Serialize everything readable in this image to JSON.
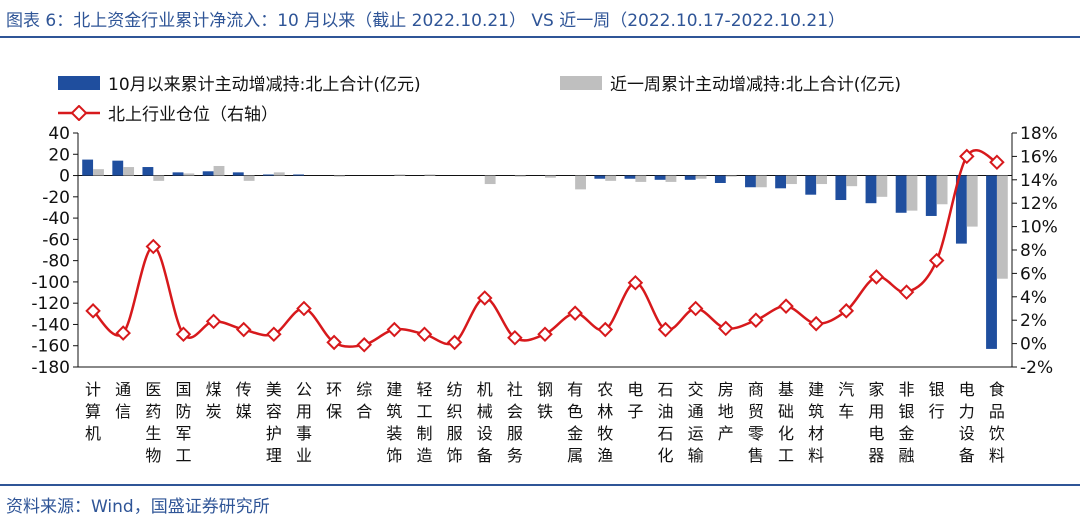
{
  "title": "图表 6：北上资金行业累计净流入：10 月以来（截止 2022.10.21） VS 近一周（2022.10.17-2022.10.21）",
  "source": "资料来源：Wind，国盛证券研究所",
  "colors": {
    "s1": "#1f4e9e",
    "s2": "#bfbfbf",
    "line": "#d7191c",
    "title": "#2f5597"
  },
  "chart_data": {
    "type": "bar",
    "categories": [
      "计算机",
      "通信",
      "医药生物",
      "国防军工",
      "煤炭",
      "传媒",
      "美容护理",
      "公用事业",
      "环保",
      "综合",
      "建筑装饰",
      "轻工制造",
      "纺织服饰",
      "机械设备",
      "社会服务",
      "钢铁",
      "有色金属",
      "农林牧渔",
      "电子",
      "石油石化",
      "交通运输",
      "房地产",
      "商贸零售",
      "基础化工",
      "建筑材料",
      "汽车",
      "家用电器",
      "非银金融",
      "银行",
      "电力设备",
      "食品饮料"
    ],
    "series": [
      {
        "name": "10月以来累计主动增减持:北上合计(亿元)",
        "axis": "left",
        "type": "bar",
        "values": [
          15,
          14,
          8,
          3,
          4,
          3,
          1,
          1,
          0,
          0,
          0,
          0,
          0,
          0,
          0,
          0,
          0,
          -3,
          -3,
          -4,
          -4,
          -7,
          -11,
          -12,
          -18,
          -23,
          -26,
          -35,
          -38,
          -64,
          -163
        ]
      },
      {
        "name": "近一周累计主动增减持:北上合计(亿元)",
        "axis": "left",
        "type": "bar",
        "values": [
          6,
          8,
          -5,
          2,
          9,
          -5,
          3,
          0,
          -1,
          0,
          1,
          1,
          0,
          -8,
          -1,
          -2,
          -13,
          -5,
          -6,
          -6,
          -3,
          -1,
          -11,
          -8,
          -8,
          -10,
          -20,
          -33,
          -27,
          -48,
          -97
        ]
      },
      {
        "name": "北上行业仓位（右轴）",
        "axis": "right",
        "type": "line",
        "values": [
          2.8,
          0.9,
          8.3,
          0.8,
          1.9,
          1.2,
          0.8,
          3.0,
          0.1,
          -0.1,
          1.2,
          0.8,
          0.1,
          3.9,
          0.5,
          0.8,
          2.6,
          1.2,
          5.2,
          1.2,
          3.0,
          1.3,
          2.0,
          3.2,
          1.7,
          2.8,
          5.7,
          4.4,
          7.1,
          16.0,
          15.5
        ]
      }
    ],
    "y_left": {
      "min": -180,
      "max": 40,
      "step": 20,
      "ticks": [
        40,
        20,
        0,
        -20,
        -40,
        -60,
        -80,
        -100,
        -120,
        -140,
        -160,
        -180
      ]
    },
    "y_right": {
      "min": -2,
      "max": 18,
      "step": 2,
      "ticks": [
        "18%",
        "16%",
        "14%",
        "12%",
        "10%",
        "8%",
        "6%",
        "4%",
        "2%",
        "0%",
        "-2%"
      ]
    },
    "legend": "top",
    "grid": false
  }
}
